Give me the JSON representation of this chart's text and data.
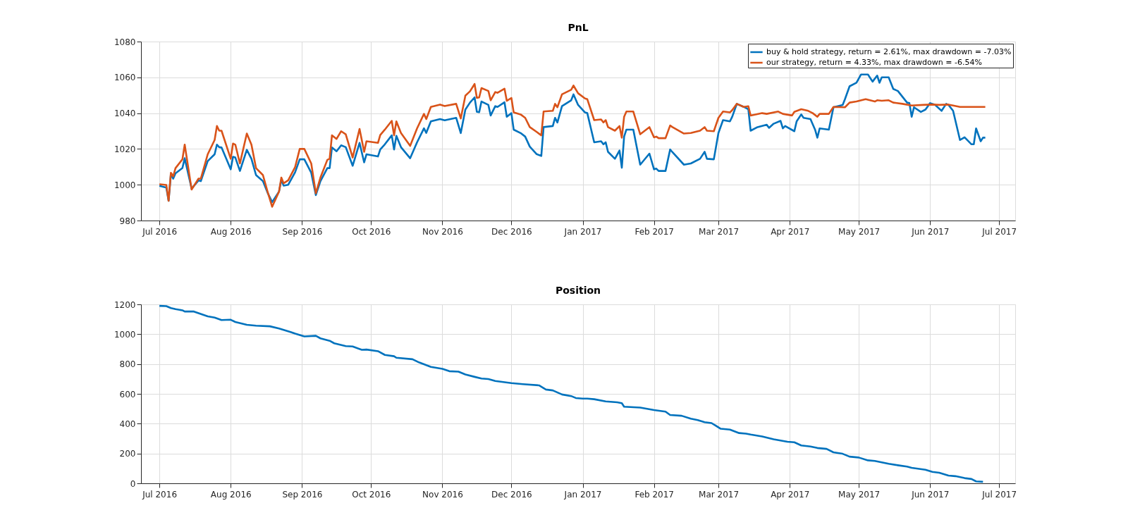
{
  "chart_data": [
    {
      "type": "line",
      "title": "PnL",
      "grid": true,
      "legend": "top right",
      "line_style": "solid",
      "xlim": [
        "2016-06-23",
        "2017-07-08"
      ],
      "ylim": [
        980,
        1080
      ],
      "yticks": [
        980,
        1000,
        1020,
        1040,
        1060,
        1080
      ],
      "xticks": [
        {
          "value": "2016-07-01",
          "label": "Jul 2016"
        },
        {
          "value": "2016-08-01",
          "label": "Aug 2016"
        },
        {
          "value": "2016-09-01",
          "label": "Sep 2016"
        },
        {
          "value": "2016-10-01",
          "label": "Oct 2016"
        },
        {
          "value": "2016-11-01",
          "label": "Nov 2016"
        },
        {
          "value": "2016-12-01",
          "label": "Dec 2016"
        },
        {
          "value": "2017-01-01",
          "label": "Jan 2017"
        },
        {
          "value": "2017-02-01",
          "label": "Feb 2017"
        },
        {
          "value": "2017-03-01",
          "label": "Mar 2017"
        },
        {
          "value": "2017-04-01",
          "label": "Apr 2017"
        },
        {
          "value": "2017-05-01",
          "label": "May 2017"
        },
        {
          "value": "2017-06-01",
          "label": "Jun 2017"
        },
        {
          "value": "2017-07-01",
          "label": "Jul 2017"
        }
      ],
      "series": [
        {
          "name": "buy & hold strategy, return = 2.61%, max drawdown = -7.03%",
          "color": "#0072bd",
          "x": [
            "2016-07-01",
            "2016-07-04",
            "2016-07-05",
            "2016-07-06",
            "2016-07-07",
            "2016-07-08",
            "2016-07-11",
            "2016-07-12",
            "2016-07-15",
            "2016-07-18",
            "2016-07-19",
            "2016-07-22",
            "2016-07-25",
            "2016-07-26",
            "2016-07-27",
            "2016-07-28",
            "2016-08-01",
            "2016-08-02",
            "2016-08-03",
            "2016-08-05",
            "2016-08-08",
            "2016-08-10",
            "2016-08-12",
            "2016-08-15",
            "2016-08-17",
            "2016-08-19",
            "2016-08-22",
            "2016-08-23",
            "2016-08-24",
            "2016-08-26",
            "2016-08-29",
            "2016-08-31",
            "2016-09-02",
            "2016-09-05",
            "2016-09-07",
            "2016-09-09",
            "2016-09-12",
            "2016-09-13",
            "2016-09-14",
            "2016-09-16",
            "2016-09-18",
            "2016-09-20",
            "2016-09-23",
            "2016-09-26",
            "2016-09-28",
            "2016-09-29",
            "2016-10-04",
            "2016-10-05",
            "2016-10-07",
            "2016-10-10",
            "2016-10-11",
            "2016-10-12",
            "2016-10-14",
            "2016-10-18",
            "2016-10-21",
            "2016-10-24",
            "2016-10-25",
            "2016-10-27",
            "2016-10-31",
            "2016-11-02",
            "2016-11-07",
            "2016-11-09",
            "2016-11-11",
            "2016-11-13",
            "2016-11-15",
            "2016-11-16",
            "2016-11-17",
            "2016-11-18",
            "2016-11-21",
            "2016-11-22",
            "2016-11-24",
            "2016-11-25",
            "2016-11-28",
            "2016-11-29",
            "2016-12-01",
            "2016-12-02",
            "2016-12-05",
            "2016-12-07",
            "2016-12-09",
            "2016-12-12",
            "2016-12-14",
            "2016-12-15",
            "2016-12-19",
            "2016-12-20",
            "2016-12-21",
            "2016-12-23",
            "2016-12-27",
            "2016-12-28",
            "2016-12-30",
            "2017-01-02",
            "2017-01-03",
            "2017-01-06",
            "2017-01-09",
            "2017-01-10",
            "2017-01-11",
            "2017-01-12",
            "2017-01-15",
            "2017-01-17",
            "2017-01-18",
            "2017-01-19",
            "2017-01-20",
            "2017-01-23",
            "2017-01-26",
            "2017-01-30",
            "2017-02-01",
            "2017-02-02",
            "2017-02-03",
            "2017-02-06",
            "2017-02-08",
            "2017-02-09",
            "2017-02-14",
            "2017-02-17",
            "2017-02-21",
            "2017-02-23",
            "2017-02-24",
            "2017-02-27",
            "2017-03-01",
            "2017-03-03",
            "2017-03-06",
            "2017-03-07",
            "2017-03-09",
            "2017-03-12",
            "2017-03-14",
            "2017-03-15",
            "2017-03-18",
            "2017-03-22",
            "2017-03-23",
            "2017-03-25",
            "2017-03-28",
            "2017-03-29",
            "2017-03-30",
            "2017-04-03",
            "2017-04-04",
            "2017-04-06",
            "2017-04-07",
            "2017-04-10",
            "2017-04-12",
            "2017-04-13",
            "2017-04-14",
            "2017-04-18",
            "2017-04-20",
            "2017-04-24",
            "2017-04-25",
            "2017-04-27",
            "2017-04-30",
            "2017-05-02",
            "2017-05-05",
            "2017-05-07",
            "2017-05-09",
            "2017-05-10",
            "2017-05-11",
            "2017-05-14",
            "2017-05-16",
            "2017-05-18",
            "2017-05-22",
            "2017-05-23",
            "2017-05-24",
            "2017-05-25",
            "2017-05-28",
            "2017-05-30",
            "2017-06-01",
            "2017-06-03",
            "2017-06-06",
            "2017-06-08",
            "2017-06-09",
            "2017-06-11",
            "2017-06-14",
            "2017-06-16",
            "2017-06-19",
            "2017-06-20",
            "2017-06-21",
            "2017-06-23",
            "2017-06-24",
            "2017-06-25"
          ],
          "values": [
            999.4,
            998.4,
            991,
            1006,
            1003.4,
            1006.4,
            1009.3,
            1014.8,
            997.8,
            1002.4,
            1002,
            1013.2,
            1017,
            1022.4,
            1021,
            1020.8,
            1008.6,
            1015.6,
            1015.2,
            1007.7,
            1019.5,
            1014.5,
            1005.4,
            1002,
            995.6,
            990.3,
            996.2,
            1002.7,
            999.5,
            1000,
            1007,
            1014.2,
            1014.2,
            1006.7,
            994.2,
            1002,
            1009.3,
            1009.3,
            1020.8,
            1018.7,
            1022,
            1021,
            1010.6,
            1023.4,
            1012.5,
            1017,
            1015.8,
            1019.7,
            1022.6,
            1027.6,
            1019.7,
            1027.3,
            1021,
            1014.8,
            1023.7,
            1031.5,
            1029,
            1035.4,
            1036.7,
            1036,
            1037.4,
            1028.9,
            1042,
            1045.9,
            1048.8,
            1040.7,
            1040.5,
            1046.5,
            1044.6,
            1038.7,
            1043.9,
            1043.5,
            1046.1,
            1038,
            1040,
            1030.8,
            1028.9,
            1026.9,
            1021.3,
            1017.1,
            1016.1,
            1032.2,
            1032.8,
            1037.4,
            1034.8,
            1043.9,
            1047.2,
            1050.5,
            1044.6,
            1040.4,
            1040,
            1023.7,
            1024.3,
            1022.6,
            1023.7,
            1018.4,
            1014.5,
            1019.1,
            1009.5,
            1026.9,
            1030.8,
            1030.8,
            1011.2,
            1017.4,
            1008.6,
            1009,
            1007.7,
            1007.7,
            1019.7,
            1018.2,
            1011.2,
            1011.9,
            1014.5,
            1018.4,
            1014.5,
            1014.2,
            1028.9,
            1036.1,
            1035.4,
            1038,
            1045.2,
            1043.5,
            1042.2,
            1030.2,
            1032.2,
            1033.5,
            1031.8,
            1034.1,
            1035.7,
            1031.5,
            1032.8,
            1029.9,
            1035.4,
            1039.3,
            1037.4,
            1036.7,
            1030.8,
            1026.3,
            1031.5,
            1030.8,
            1043.3,
            1044.6,
            1047.8,
            1055,
            1057,
            1061.6,
            1061.6,
            1057.6,
            1061,
            1057,
            1060,
            1060,
            1053.5,
            1052.4,
            1045.9,
            1045.6,
            1038,
            1043.3,
            1040.7,
            1042,
            1045.6,
            1044.8,
            1041.3,
            1045.2,
            1044.6,
            1041.3,
            1025,
            1026.5,
            1022.6,
            1022.6,
            1031.5,
            1024.3,
            1026.3,
            1026.3
          ]
        },
        {
          "name": "our strategy, return = 4.33%, max drawdown = -6.54%",
          "color": "#d95319",
          "x": [
            "2016-07-01",
            "2016-07-04",
            "2016-07-05",
            "2016-07-06",
            "2016-07-07",
            "2016-07-08",
            "2016-07-11",
            "2016-07-12",
            "2016-07-15",
            "2016-07-18",
            "2016-07-19",
            "2016-07-22",
            "2016-07-25",
            "2016-07-26",
            "2016-07-27",
            "2016-07-28",
            "2016-08-01",
            "2016-08-02",
            "2016-08-03",
            "2016-08-05",
            "2016-08-08",
            "2016-08-10",
            "2016-08-12",
            "2016-08-15",
            "2016-08-17",
            "2016-08-19",
            "2016-08-22",
            "2016-08-23",
            "2016-08-24",
            "2016-08-26",
            "2016-08-29",
            "2016-08-31",
            "2016-09-02",
            "2016-09-05",
            "2016-09-07",
            "2016-09-09",
            "2016-09-12",
            "2016-09-13",
            "2016-09-14",
            "2016-09-16",
            "2016-09-18",
            "2016-09-20",
            "2016-09-23",
            "2016-09-26",
            "2016-09-28",
            "2016-09-29",
            "2016-10-04",
            "2016-10-05",
            "2016-10-07",
            "2016-10-10",
            "2016-10-11",
            "2016-10-12",
            "2016-10-14",
            "2016-10-18",
            "2016-10-21",
            "2016-10-24",
            "2016-10-25",
            "2016-10-27",
            "2016-10-31",
            "2016-11-02",
            "2016-11-07",
            "2016-11-09",
            "2016-11-11",
            "2016-11-13",
            "2016-11-15",
            "2016-11-16",
            "2016-11-17",
            "2016-11-18",
            "2016-11-21",
            "2016-11-22",
            "2016-11-24",
            "2016-11-25",
            "2016-11-28",
            "2016-11-29",
            "2016-12-01",
            "2016-12-02",
            "2016-12-05",
            "2016-12-07",
            "2016-12-09",
            "2016-12-12",
            "2016-12-14",
            "2016-12-15",
            "2016-12-19",
            "2016-12-20",
            "2016-12-21",
            "2016-12-23",
            "2016-12-27",
            "2016-12-28",
            "2016-12-30",
            "2017-01-02",
            "2017-01-03",
            "2017-01-06",
            "2017-01-09",
            "2017-01-10",
            "2017-01-11",
            "2017-01-12",
            "2017-01-15",
            "2017-01-17",
            "2017-01-18",
            "2017-01-19",
            "2017-01-20",
            "2017-01-23",
            "2017-01-26",
            "2017-01-30",
            "2017-02-01",
            "2017-02-02",
            "2017-02-03",
            "2017-02-06",
            "2017-02-08",
            "2017-02-09",
            "2017-02-14",
            "2017-02-17",
            "2017-02-21",
            "2017-02-23",
            "2017-02-24",
            "2017-02-27",
            "2017-03-01",
            "2017-03-03",
            "2017-03-06",
            "2017-03-07",
            "2017-03-09",
            "2017-03-12",
            "2017-03-14",
            "2017-03-15",
            "2017-03-20",
            "2017-03-22",
            "2017-03-27",
            "2017-03-29",
            "2017-04-02",
            "2017-04-03",
            "2017-04-06",
            "2017-04-09",
            "2017-04-11",
            "2017-04-13",
            "2017-04-14",
            "2017-04-18",
            "2017-04-20",
            "2017-04-25",
            "2017-04-27",
            "2017-04-30",
            "2017-05-04",
            "2017-05-08",
            "2017-05-09",
            "2017-05-11",
            "2017-05-14",
            "2017-05-16",
            "2017-05-20",
            "2017-05-24",
            "2017-05-29",
            "2017-06-02",
            "2017-06-05",
            "2017-06-09",
            "2017-06-11",
            "2017-06-14",
            "2017-06-20",
            "2017-06-25"
          ],
          "values": [
            1000.3,
            999.9,
            991,
            1006.7,
            1004.7,
            1009.3,
            1014.2,
            1022.4,
            997.3,
            1003.4,
            1003.4,
            1017,
            1025,
            1032.8,
            1030.2,
            1030.2,
            1014.5,
            1023,
            1022.4,
            1011.9,
            1028.6,
            1022.4,
            1009.3,
            1005.4,
            996.2,
            987.7,
            996.2,
            1004,
            1000.8,
            1002.5,
            1009.9,
            1020,
            1020,
            1011.9,
            995.2,
            1004,
            1013.9,
            1014.5,
            1027.6,
            1025.6,
            1029.9,
            1028.2,
            1015.2,
            1031.2,
            1018.4,
            1024.3,
            1023.4,
            1027.8,
            1030.8,
            1035.7,
            1027.6,
            1035.4,
            1028.9,
            1021.7,
            1031.5,
            1039.6,
            1036.7,
            1043.5,
            1044.8,
            1044,
            1045.2,
            1037,
            1049.8,
            1052.2,
            1056.3,
            1048.5,
            1048.8,
            1054,
            1052.4,
            1047.2,
            1051.8,
            1051.4,
            1053.7,
            1046.9,
            1048.5,
            1040.4,
            1039.3,
            1037.4,
            1032.2,
            1029.5,
            1027.6,
            1040.9,
            1041.3,
            1045.2,
            1043.3,
            1050.5,
            1053.1,
            1055.4,
            1051.1,
            1048.2,
            1047.8,
            1036.1,
            1036.5,
            1034.8,
            1036.1,
            1032.2,
            1030.2,
            1032.8,
            1026.3,
            1038,
            1040.9,
            1040.9,
            1028.2,
            1032.2,
            1026.5,
            1026.9,
            1026,
            1026,
            1033.1,
            1032.2,
            1028.6,
            1028.9,
            1030.2,
            1032.2,
            1030.2,
            1029.9,
            1037.4,
            1040.9,
            1040.4,
            1041.7,
            1045.2,
            1043.5,
            1043.9,
            1038.7,
            1040,
            1039.6,
            1040.9,
            1039.6,
            1038.7,
            1040.7,
            1042.2,
            1041.3,
            1040,
            1038,
            1039.6,
            1039.6,
            1043.5,
            1043.3,
            1045.9,
            1046.5,
            1047.8,
            1046.5,
            1047.2,
            1046.9,
            1047.2,
            1045.9,
            1045.2,
            1044.3,
            1044.6,
            1044.8,
            1044.6,
            1044.8,
            1044.3,
            1043.5,
            1043.5,
            1043.5
          ]
        }
      ]
    },
    {
      "type": "line",
      "title": "Position",
      "grid": true,
      "line_style": "solid",
      "xlim": [
        "2016-06-23",
        "2017-07-08"
      ],
      "ylim": [
        0,
        1200
      ],
      "yticks": [
        0,
        200,
        400,
        600,
        800,
        1000,
        1200
      ],
      "xticks": [
        {
          "value": "2016-07-01",
          "label": "Jul 2016"
        },
        {
          "value": "2016-08-01",
          "label": "Aug 2016"
        },
        {
          "value": "2016-09-01",
          "label": "Sep 2016"
        },
        {
          "value": "2016-10-01",
          "label": "Oct 2016"
        },
        {
          "value": "2016-11-01",
          "label": "Nov 2016"
        },
        {
          "value": "2016-12-01",
          "label": "Dec 2016"
        },
        {
          "value": "2017-01-01",
          "label": "Jan 2017"
        },
        {
          "value": "2017-02-01",
          "label": "Feb 2017"
        },
        {
          "value": "2017-03-01",
          "label": "Mar 2017"
        },
        {
          "value": "2017-04-01",
          "label": "Apr 2017"
        },
        {
          "value": "2017-05-01",
          "label": "May 2017"
        },
        {
          "value": "2017-06-01",
          "label": "Jun 2017"
        },
        {
          "value": "2017-07-01",
          "label": "Jul 2017"
        }
      ],
      "series": [
        {
          "color": "#0072bd",
          "x": [
            "2016-07-01",
            "2016-07-04",
            "2016-07-06",
            "2016-07-08",
            "2016-07-11",
            "2016-07-12",
            "2016-07-16",
            "2016-07-18",
            "2016-07-22",
            "2016-07-25",
            "2016-07-28",
            "2016-08-01",
            "2016-08-03",
            "2016-08-08",
            "2016-08-12",
            "2016-08-18",
            "2016-08-22",
            "2016-08-27",
            "2016-08-29",
            "2016-09-02",
            "2016-09-07",
            "2016-09-09",
            "2016-09-13",
            "2016-09-15",
            "2016-09-20",
            "2016-09-23",
            "2016-09-27",
            "2016-09-29",
            "2016-10-04",
            "2016-10-07",
            "2016-10-11",
            "2016-10-12",
            "2016-10-19",
            "2016-10-22",
            "2016-10-27",
            "2016-11-01",
            "2016-11-04",
            "2016-11-08",
            "2016-11-11",
            "2016-11-15",
            "2016-11-18",
            "2016-11-21",
            "2016-11-24",
            "2016-12-01",
            "2016-12-06",
            "2016-12-13",
            "2016-12-16",
            "2016-12-19",
            "2016-12-23",
            "2016-12-27",
            "2016-12-29",
            "2017-01-01",
            "2017-01-03",
            "2017-01-06",
            "2017-01-11",
            "2017-01-16",
            "2017-01-18",
            "2017-01-19",
            "2017-01-26",
            "2017-02-01",
            "2017-02-06",
            "2017-02-08",
            "2017-02-13",
            "2017-02-17",
            "2017-02-20",
            "2017-02-23",
            "2017-02-26",
            "2017-03-02",
            "2017-03-06",
            "2017-03-10",
            "2017-03-13",
            "2017-03-15",
            "2017-03-20",
            "2017-03-25",
            "2017-03-31",
            "2017-04-03",
            "2017-04-06",
            "2017-04-10",
            "2017-04-13",
            "2017-04-17",
            "2017-04-20",
            "2017-04-24",
            "2017-04-27",
            "2017-05-01",
            "2017-05-05",
            "2017-05-08",
            "2017-05-11",
            "2017-05-14",
            "2017-05-18",
            "2017-05-22",
            "2017-05-24",
            "2017-05-30",
            "2017-06-02",
            "2017-06-05",
            "2017-06-09",
            "2017-06-12",
            "2017-06-16",
            "2017-06-19",
            "2017-06-21",
            "2017-06-24"
          ],
          "values": [
            1190,
            1188,
            1175,
            1168,
            1160,
            1152,
            1152,
            1141,
            1120,
            1111,
            1095,
            1097,
            1082,
            1063,
            1057,
            1053,
            1038,
            1015,
            1004,
            985,
            989,
            972,
            956,
            939,
            920,
            918,
            895,
            897,
            886,
            861,
            852,
            842,
            832,
            810,
            781,
            768,
            752,
            749,
            730,
            714,
            703,
            699,
            686,
            672,
            665,
            657,
            629,
            623,
            596,
            585,
            572,
            568,
            568,
            564,
            549,
            543,
            537,
            514,
            508,
            491,
            481,
            458,
            453,
            433,
            424,
            410,
            404,
            366,
            360,
            337,
            333,
            327,
            314,
            295,
            279,
            275,
            254,
            247,
            237,
            231,
            208,
            198,
            179,
            173,
            154,
            150,
            141,
            131,
            121,
            112,
            104,
            91,
            77,
            71,
            52,
            48,
            35,
            29,
            13,
            10
          ]
        }
      ]
    }
  ]
}
